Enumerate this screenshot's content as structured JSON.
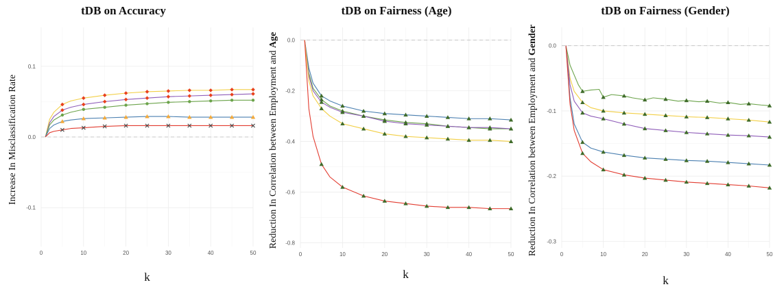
{
  "chart_data": [
    {
      "type": "line",
      "title": "tDB on Accuracy",
      "xlabel": "k",
      "ylabel": "Increase In Misclassification Rate",
      "ylabel_bold": "",
      "xlim": [
        0,
        50
      ],
      "ylim": [
        -0.155,
        0.155
      ],
      "xticks": [
        0,
        10,
        20,
        30,
        40,
        50
      ],
      "yticks": [
        -0.1,
        0.0,
        0.1
      ],
      "ytick_labels": [
        "-0.1",
        "0.0",
        "0.1"
      ],
      "grid": true,
      "zero_line": true,
      "markers_x": [
        5,
        10,
        15,
        20,
        25,
        30,
        35,
        40,
        45,
        50
      ],
      "series": [
        {
          "color": "#f2cf45",
          "marker": "diamond",
          "marker_color": "#e8401c",
          "x": [
            1,
            2,
            3,
            5,
            7,
            10,
            15,
            20,
            25,
            30,
            35,
            40,
            45,
            50
          ],
          "y": [
            0.0,
            0.025,
            0.035,
            0.046,
            0.051,
            0.055,
            0.059,
            0.062,
            0.064,
            0.065,
            0.066,
            0.066,
            0.067,
            0.067
          ]
        },
        {
          "color": "#8e5cb8",
          "marker": "diamond",
          "marker_color": "#e8401c",
          "x": [
            1,
            2,
            3,
            5,
            7,
            10,
            15,
            20,
            25,
            30,
            35,
            40,
            45,
            50
          ],
          "y": [
            0.0,
            0.02,
            0.029,
            0.038,
            0.042,
            0.046,
            0.05,
            0.053,
            0.055,
            0.057,
            0.058,
            0.059,
            0.06,
            0.061
          ]
        },
        {
          "color": "#6ba34a",
          "marker": "dot",
          "marker_color": "#6ba34a",
          "x": [
            1,
            2,
            3,
            5,
            7,
            10,
            15,
            20,
            25,
            30,
            35,
            40,
            45,
            50
          ],
          "y": [
            0.0,
            0.017,
            0.024,
            0.031,
            0.035,
            0.039,
            0.042,
            0.045,
            0.047,
            0.049,
            0.05,
            0.051,
            0.052,
            0.052
          ]
        },
        {
          "color": "#4a7fb0",
          "marker": "triangle",
          "marker_color": "#f2a93b",
          "x": [
            1,
            2,
            3,
            5,
            7,
            10,
            15,
            20,
            25,
            30,
            35,
            40,
            45,
            50
          ],
          "y": [
            0.0,
            0.012,
            0.017,
            0.022,
            0.024,
            0.026,
            0.027,
            0.028,
            0.029,
            0.029,
            0.028,
            0.028,
            0.028,
            0.028
          ]
        },
        {
          "color": "#e23b2f",
          "marker": "cross",
          "marker_color": "#444444",
          "x": [
            1,
            2,
            3,
            5,
            7,
            10,
            15,
            20,
            25,
            30,
            35,
            40,
            45,
            50
          ],
          "y": [
            0.0,
            0.006,
            0.008,
            0.01,
            0.012,
            0.013,
            0.015,
            0.016,
            0.016,
            0.016,
            0.016,
            0.016,
            0.016,
            0.016
          ]
        }
      ]
    },
    {
      "type": "line",
      "title": "tDB on Fairness (Age)",
      "xlabel": "k",
      "ylabel": "Reduction In Correlation between Employment and ",
      "ylabel_bold": "Age",
      "xlim": [
        0,
        50
      ],
      "ylim": [
        -0.82,
        0.05
      ],
      "xticks": [
        0,
        10,
        20,
        30,
        40,
        50
      ],
      "yticks": [
        -0.8,
        -0.6,
        -0.4,
        -0.2,
        0.0
      ],
      "ytick_labels": [
        "-0.8",
        "-0.6",
        "-0.4",
        "-0.2",
        "0.0"
      ],
      "grid": true,
      "zero_line": true,
      "markers_x": [
        5,
        10,
        15,
        20,
        25,
        30,
        35,
        40,
        45,
        50
      ],
      "series": [
        {
          "color": "#4a7fb0",
          "marker": "triangle",
          "marker_color": "#3f6b2a",
          "x": [
            1,
            2,
            3,
            5,
            7,
            10,
            15,
            20,
            25,
            30,
            35,
            40,
            45,
            50
          ],
          "y": [
            0.0,
            -0.11,
            -0.17,
            -0.22,
            -0.24,
            -0.26,
            -0.28,
            -0.29,
            -0.295,
            -0.3,
            -0.305,
            -0.31,
            -0.31,
            -0.315
          ]
        },
        {
          "color": "#6ba34a",
          "marker": "triangle",
          "marker_color": "#3f6b2a",
          "x": [
            1,
            2,
            3,
            5,
            7,
            10,
            15,
            20,
            25,
            30,
            35,
            40,
            45,
            50
          ],
          "y": [
            0.0,
            -0.13,
            -0.19,
            -0.235,
            -0.26,
            -0.28,
            -0.3,
            -0.315,
            -0.325,
            -0.33,
            -0.34,
            -0.345,
            -0.35,
            -0.35
          ]
        },
        {
          "color": "#8e5cb8",
          "marker": "triangle",
          "marker_color": "#3f6b2a",
          "x": [
            1,
            2,
            3,
            5,
            7,
            10,
            15,
            20,
            25,
            30,
            35,
            40,
            45,
            50
          ],
          "y": [
            0.0,
            -0.14,
            -0.2,
            -0.245,
            -0.265,
            -0.285,
            -0.3,
            -0.32,
            -0.33,
            -0.335,
            -0.34,
            -0.345,
            -0.345,
            -0.35
          ]
        },
        {
          "color": "#f2cf45",
          "marker": "triangle",
          "marker_color": "#3f6b2a",
          "x": [
            1,
            2,
            3,
            5,
            7,
            10,
            15,
            20,
            25,
            30,
            35,
            40,
            45,
            50
          ],
          "y": [
            0.0,
            -0.16,
            -0.22,
            -0.27,
            -0.3,
            -0.33,
            -0.35,
            -0.37,
            -0.38,
            -0.385,
            -0.39,
            -0.395,
            -0.395,
            -0.4
          ]
        },
        {
          "color": "#e23b2f",
          "marker": "triangle",
          "marker_color": "#3f6b2a",
          "x": [
            1,
            2,
            3,
            5,
            7,
            10,
            15,
            20,
            25,
            30,
            35,
            40,
            45,
            50
          ],
          "y": [
            0.0,
            -0.27,
            -0.38,
            -0.49,
            -0.54,
            -0.58,
            -0.615,
            -0.635,
            -0.645,
            -0.655,
            -0.66,
            -0.66,
            -0.665,
            -0.665
          ]
        }
      ]
    },
    {
      "type": "line",
      "title": "tDB on Fairness (Gender)",
      "xlabel": "k",
      "ylabel": "Reduction In Correlation between Employment and ",
      "ylabel_bold": "Gender",
      "xlim": [
        0,
        50
      ],
      "ylim": [
        -0.31,
        0.028
      ],
      "xticks": [
        0,
        10,
        20,
        30,
        40,
        50
      ],
      "yticks": [
        -0.3,
        -0.2,
        -0.1,
        0.0
      ],
      "ytick_labels": [
        "-0.3",
        "-0.2",
        "-0.1",
        "0.0"
      ],
      "grid": true,
      "zero_line": true,
      "markers_x": [
        5,
        10,
        15,
        20,
        25,
        30,
        35,
        40,
        45,
        50
      ],
      "series": [
        {
          "color": "#6ba34a",
          "marker": "triangle",
          "marker_color": "#3f6b2a",
          "x": [
            1,
            2,
            3,
            4,
            5,
            7,
            9,
            10,
            12,
            15,
            17,
            20,
            22,
            25,
            28,
            30,
            33,
            35,
            38,
            40,
            43,
            45,
            48,
            50
          ],
          "y": [
            0.0,
            -0.03,
            -0.045,
            -0.06,
            -0.07,
            -0.068,
            -0.067,
            -0.079,
            -0.075,
            -0.077,
            -0.08,
            -0.083,
            -0.08,
            -0.082,
            -0.085,
            -0.084,
            -0.086,
            -0.085,
            -0.088,
            -0.087,
            -0.09,
            -0.089,
            -0.091,
            -0.092
          ]
        },
        {
          "color": "#f2cf45",
          "marker": "triangle",
          "marker_color": "#3f6b2a",
          "x": [
            1,
            2,
            3,
            5,
            7,
            10,
            15,
            20,
            25,
            30,
            35,
            40,
            45,
            50
          ],
          "y": [
            0.0,
            -0.05,
            -0.07,
            -0.087,
            -0.095,
            -0.1,
            -0.103,
            -0.105,
            -0.107,
            -0.109,
            -0.11,
            -0.112,
            -0.114,
            -0.117
          ]
        },
        {
          "color": "#8e5cb8",
          "marker": "triangle",
          "marker_color": "#3f6b2a",
          "x": [
            1,
            2,
            3,
            5,
            7,
            10,
            15,
            20,
            25,
            30,
            35,
            40,
            45,
            50
          ],
          "y": [
            0.0,
            -0.06,
            -0.085,
            -0.103,
            -0.108,
            -0.112,
            -0.12,
            -0.127,
            -0.13,
            -0.133,
            -0.135,
            -0.137,
            -0.138,
            -0.14
          ]
        },
        {
          "color": "#4a7fb0",
          "marker": "triangle",
          "marker_color": "#3f6b2a",
          "x": [
            1,
            2,
            3,
            5,
            7,
            10,
            15,
            20,
            25,
            30,
            35,
            40,
            45,
            50
          ],
          "y": [
            0.0,
            -0.08,
            -0.12,
            -0.148,
            -0.157,
            -0.163,
            -0.168,
            -0.172,
            -0.174,
            -0.176,
            -0.177,
            -0.179,
            -0.181,
            -0.183
          ]
        },
        {
          "color": "#e23b2f",
          "marker": "triangle",
          "marker_color": "#3f6b2a",
          "x": [
            1,
            2,
            3,
            5,
            7,
            10,
            15,
            20,
            25,
            30,
            35,
            40,
            45,
            50
          ],
          "y": [
            0.0,
            -0.09,
            -0.13,
            -0.165,
            -0.178,
            -0.19,
            -0.198,
            -0.203,
            -0.206,
            -0.209,
            -0.211,
            -0.213,
            -0.215,
            -0.218
          ]
        }
      ]
    }
  ]
}
